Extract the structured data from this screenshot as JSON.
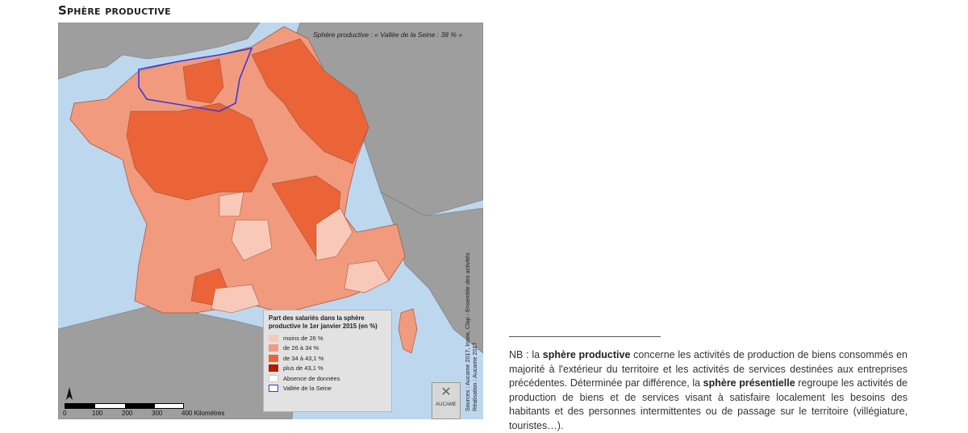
{
  "title": "Sphère productive",
  "map": {
    "caption": "Sphère productive : « Vallée de la Seine : 38 % »",
    "legend": {
      "title": "Part des salariés dans la sphère productive le 1er janvier 2015 (en %)",
      "items": [
        {
          "label": "moins de 26 %",
          "color": "#f8c9b8"
        },
        {
          "label": "de 26 à 34 %",
          "color": "#f29a7e"
        },
        {
          "label": "de 34 à 43,1 %",
          "color": "#ea6437"
        },
        {
          "label": "plus de 43,1 %",
          "color": "#b31c04"
        },
        {
          "label": "Absence de données",
          "color": "#ffffff"
        },
        {
          "label": "Vallée de la Seine",
          "color": "#3a3ad8"
        }
      ]
    },
    "scale": {
      "ticks": [
        "0",
        "100",
        "200",
        "300",
        "400 Kilomètres"
      ]
    },
    "sources": {
      "line1": "Sources : Aucame 2017, Insee, Clap - Ensemble des activités",
      "line2": "Réalisation : Aucame 2017"
    },
    "logo_text": "AUCAME",
    "colors": {
      "sea": "#bdd7ee",
      "land_other": "#9e9e9e"
    }
  },
  "nb": {
    "p1": "NB : la ",
    "b1": "sphère productive",
    "p2": " concerne les activités de production de biens consommés en majorité à l'extérieur du territoire et les activités de services destinées aux entreprises précédentes. Déterminée par différence, la ",
    "b2": "sphère présentielle",
    "p3": " regroupe les activités de production de biens et de services visant à satisfaire localement les besoins des habitants et des personnes intermittentes ou de passage sur le territoire (villégiature, touristes…)."
  }
}
